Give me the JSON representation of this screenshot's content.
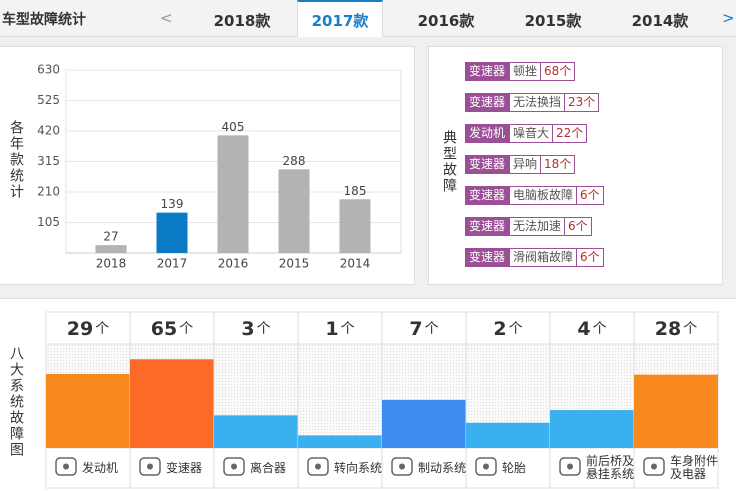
{
  "header": {
    "title": "车型故障统计",
    "prev": "<",
    "next": ">",
    "tabs": [
      "2018款",
      "2017款",
      "2016款",
      "2015款",
      "2014款"
    ],
    "active_tab": 1
  },
  "chart_data": [
    {
      "type": "bar",
      "ylabel": "各年款统计",
      "categories": [
        "2018",
        "2017",
        "2016",
        "2015",
        "2014"
      ],
      "values": [
        27,
        139,
        405,
        288,
        185
      ],
      "colors": [
        "#b3b3b3",
        "#0c7bc5",
        "#b3b3b3",
        "#b3b3b3",
        "#b3b3b3"
      ],
      "ylim": [
        0,
        630
      ],
      "yticks": [
        105,
        210,
        315,
        420,
        525,
        630
      ],
      "grid": true
    },
    {
      "type": "column",
      "ylabel": "八大系统故障图",
      "unit": "个",
      "categories": [
        "发动机",
        "变速器",
        "离合器",
        "转向系统",
        "制动系统",
        "轮胎",
        "前后桥及悬挂系统",
        "车身附件及电器"
      ],
      "values": [
        29,
        65,
        3,
        1,
        7,
        2,
        4,
        28
      ],
      "colors": [
        "#f7891f",
        "#fd6a26",
        "#3bb0f0",
        "#3bb0f0",
        "#3d8ef0",
        "#3bb0f0",
        "#3bb0f0",
        "#f7891f"
      ],
      "ylim": [
        0.5,
        150
      ],
      "log_scale": true
    }
  ],
  "typical_faults": {
    "label": "典型故障",
    "items": [
      {
        "part": "变速器",
        "issue": "顿挫",
        "count": "68个"
      },
      {
        "part": "变速器",
        "issue": "无法换挡",
        "count": "23个"
      },
      {
        "part": "发动机",
        "issue": "噪音大",
        "count": "22个"
      },
      {
        "part": "变速器",
        "issue": "异响",
        "count": "18个"
      },
      {
        "part": "变速器",
        "issue": "电脑板故障",
        "count": "6个"
      },
      {
        "part": "变速器",
        "issue": "无法加速",
        "count": "6个"
      },
      {
        "part": "变速器",
        "issue": "滑阀箱故障",
        "count": "6个"
      }
    ]
  }
}
